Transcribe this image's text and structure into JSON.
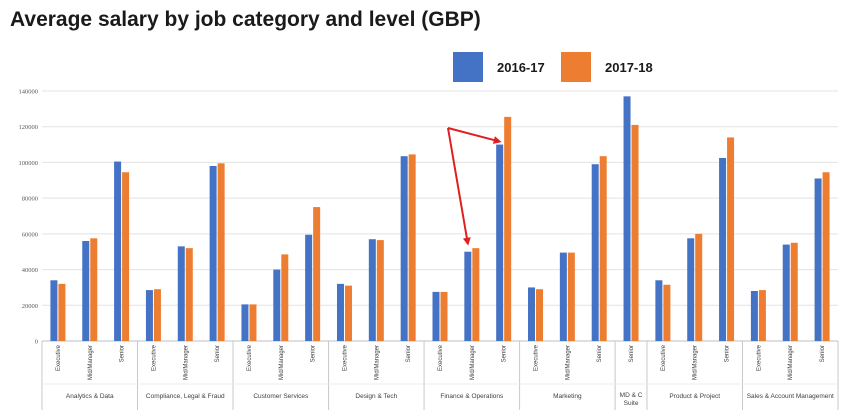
{
  "chart_data": {
    "type": "bar",
    "title": "Average salary by job category and level (GBP)",
    "xlabel": "",
    "ylabel": "",
    "ylim": [
      0,
      140000
    ],
    "yticks": [
      0,
      20000,
      40000,
      60000,
      80000,
      100000,
      120000,
      140000
    ],
    "grid": true,
    "legend_position": "top-right",
    "series": [
      {
        "name": "2016-17",
        "color": "#4472c4"
      },
      {
        "name": "2017-18",
        "color": "#ed7d31"
      }
    ],
    "groups": [
      {
        "name": "Analytics & Data",
        "categories": [
          {
            "label": "Executive",
            "values": [
              34000,
              32000
            ]
          },
          {
            "label": "Mid/Manager",
            "values": [
              56000,
              57500
            ]
          },
          {
            "label": "Senior",
            "values": [
              100500,
              94500
            ]
          }
        ]
      },
      {
        "name": "Compliance, Legal & Fraud",
        "categories": [
          {
            "label": "Executive",
            "values": [
              28500,
              29000
            ]
          },
          {
            "label": "Mid/Manager",
            "values": [
              53000,
              52000
            ]
          },
          {
            "label": "Senior",
            "values": [
              98000,
              99500
            ]
          }
        ]
      },
      {
        "name": "Customer Services",
        "categories": [
          {
            "label": "Executive",
            "values": [
              20500,
              20500
            ]
          },
          {
            "label": "Mid/Manager",
            "values": [
              40000,
              48500
            ]
          },
          {
            "label": "Senior",
            "values": [
              59500,
              75000
            ]
          }
        ]
      },
      {
        "name": "Design & Tech",
        "categories": [
          {
            "label": "Executive",
            "values": [
              32000,
              31000
            ]
          },
          {
            "label": "Mid/Manager",
            "values": [
              57000,
              56500
            ]
          },
          {
            "label": "Senior",
            "values": [
              103500,
              104500
            ]
          }
        ]
      },
      {
        "name": "Finance & Operations",
        "categories": [
          {
            "label": "Executive",
            "values": [
              27500,
              27500
            ]
          },
          {
            "label": "Mid/Manager",
            "values": [
              50000,
              52000
            ]
          },
          {
            "label": "Senior",
            "values": [
              110000,
              125500
            ]
          }
        ]
      },
      {
        "name": "Marketing",
        "categories": [
          {
            "label": "Executive",
            "values": [
              30000,
              29000
            ]
          },
          {
            "label": "Mid/Manager",
            "values": [
              49500,
              49500
            ]
          },
          {
            "label": "Senior",
            "values": [
              99000,
              103500
            ]
          }
        ]
      },
      {
        "name": "MD & C Suite",
        "categories": [
          {
            "label": "Senior",
            "values": [
              137000,
              121000
            ]
          }
        ]
      },
      {
        "name": "Product & Project",
        "categories": [
          {
            "label": "Executive",
            "values": [
              34000,
              31500
            ]
          },
          {
            "label": "Mid/Manager",
            "values": [
              57500,
              60000
            ]
          },
          {
            "label": "Senior",
            "values": [
              102500,
              114000
            ]
          }
        ]
      },
      {
        "name": "Sales & Account Management",
        "categories": [
          {
            "label": "Executive",
            "values": [
              28000,
              28500
            ]
          },
          {
            "label": "Mid/Manager",
            "values": [
              54000,
              55000
            ]
          },
          {
            "label": "Senior",
            "values": [
              91000,
              94500
            ]
          }
        ]
      }
    ],
    "annotations": [
      {
        "type": "arrow",
        "color": "#e02020",
        "points_to": "Finance & Operations / Senior / 2017-18"
      },
      {
        "type": "arrow",
        "color": "#e02020",
        "points_to": "Finance & Operations / Mid/Manager / 2016-17"
      }
    ]
  }
}
